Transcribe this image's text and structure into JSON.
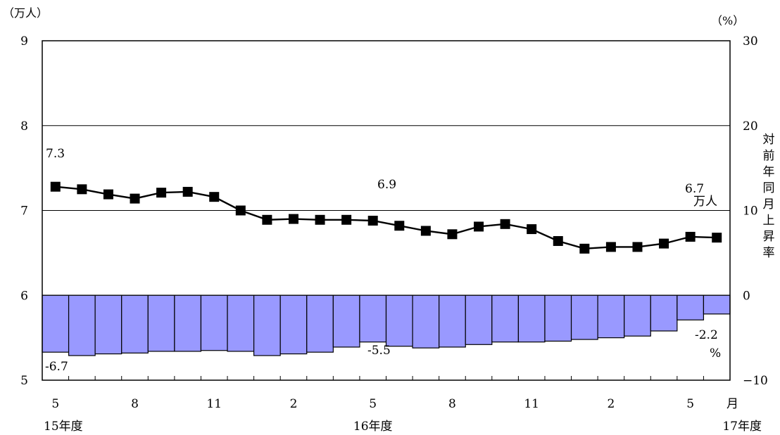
{
  "chart_data": {
    "type": "bar+line",
    "title": "",
    "left_axis": {
      "unit_label": "（万人）",
      "range": [
        5,
        9
      ],
      "ticks": [
        "5",
        "6",
        "7",
        "8",
        "9"
      ]
    },
    "right_axis": {
      "unit_label": "（%）",
      "range": [
        -10,
        30
      ],
      "ticks": [
        "−10",
        "0",
        "10",
        "20",
        "30"
      ],
      "title_chars": [
        "対",
        "前",
        "年",
        "同",
        "月",
        "上",
        "昇",
        "率"
      ]
    },
    "x_axis": {
      "month_labels": [
        {
          "index": 0,
          "text": "5"
        },
        {
          "index": 3,
          "text": "8"
        },
        {
          "index": 6,
          "text": "11"
        },
        {
          "index": 9,
          "text": "2"
        },
        {
          "index": 12,
          "text": "5"
        },
        {
          "index": 15,
          "text": "8"
        },
        {
          "index": 18,
          "text": "11"
        },
        {
          "index": 21,
          "text": "2"
        },
        {
          "index": 24,
          "text": "5"
        }
      ],
      "month_unit": "月",
      "year_labels": [
        {
          "index": 0,
          "text": "15年度"
        },
        {
          "index": 12,
          "text": "16年度"
        },
        {
          "index": 25,
          "text": "17年度"
        }
      ]
    },
    "grid": true,
    "series": [
      {
        "type": "line",
        "axis": "left",
        "color": "#000000",
        "marker": "square",
        "values": [
          7.28,
          7.25,
          7.19,
          7.14,
          7.21,
          7.22,
          7.16,
          7.0,
          6.89,
          6.9,
          6.89,
          6.89,
          6.88,
          6.82,
          6.76,
          6.72,
          6.81,
          6.84,
          6.78,
          6.64,
          6.55,
          6.57,
          6.57,
          6.61,
          6.69,
          6.68
        ]
      },
      {
        "type": "bar",
        "axis": "right",
        "color": "#9999ff",
        "values": [
          -6.7,
          -7.1,
          -6.9,
          -6.8,
          -6.6,
          -6.6,
          -6.5,
          -6.6,
          -7.1,
          -6.9,
          -6.7,
          -6.1,
          -5.5,
          -6.0,
          -6.2,
          -6.1,
          -5.8,
          -5.5,
          -5.5,
          -5.4,
          -5.2,
          -5.0,
          -4.8,
          -4.2,
          -2.9,
          -2.2
        ]
      }
    ],
    "annotations": [
      {
        "id": "line-first",
        "text": "7.3"
      },
      {
        "id": "line-mid",
        "text": "6.9"
      },
      {
        "id": "line-last",
        "text": "6.7"
      },
      {
        "id": "line-last-unit",
        "text": "万人"
      },
      {
        "id": "bar-first",
        "text": "-6.7"
      },
      {
        "id": "bar-mid",
        "text": "-5.5"
      },
      {
        "id": "bar-last",
        "text": "-2.2"
      },
      {
        "id": "bar-last-unit",
        "text": "%"
      }
    ]
  }
}
